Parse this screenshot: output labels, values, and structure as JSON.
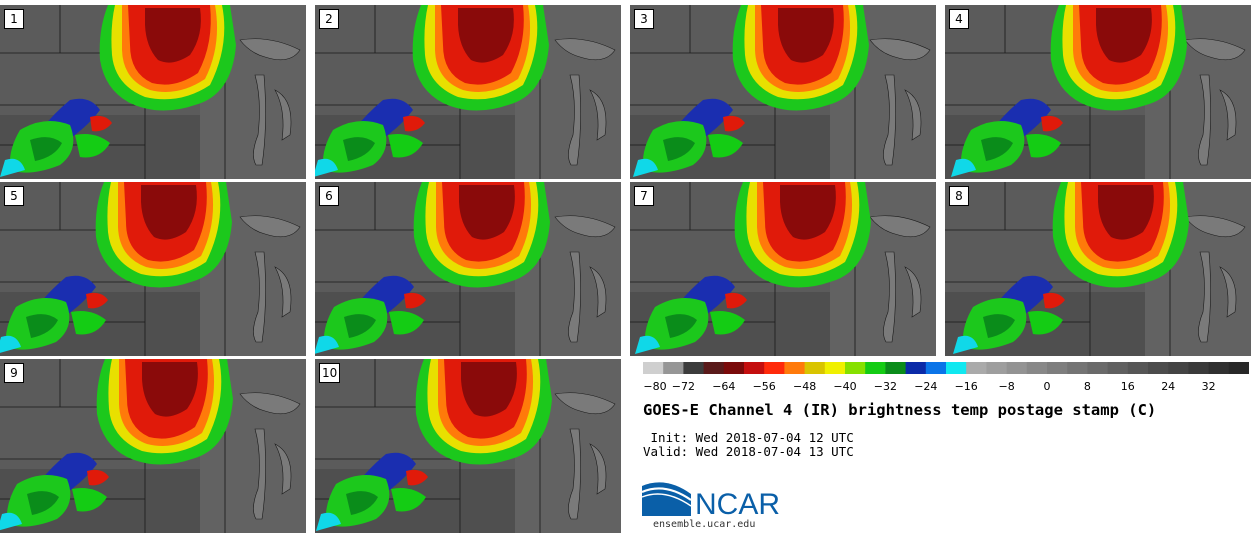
{
  "panels": [
    {
      "label": "1"
    },
    {
      "label": "2"
    },
    {
      "label": "3"
    },
    {
      "label": "4"
    },
    {
      "label": "5"
    },
    {
      "label": "6"
    },
    {
      "label": "7"
    },
    {
      "label": "8"
    },
    {
      "label": "9"
    },
    {
      "label": "10"
    }
  ],
  "colorbar": {
    "colors": [
      "#cfcfcf",
      "#969696",
      "#3c3c3c",
      "#5a1a1a",
      "#7a0a0a",
      "#c40e0e",
      "#ff2a0a",
      "#ff7a0a",
      "#d9c400",
      "#f0f000",
      "#86e000",
      "#14cc14",
      "#0a8c1a",
      "#0a2aa8",
      "#0a74e8",
      "#10e8f0",
      "#aaaaaa",
      "#9e9e9e",
      "#939393",
      "#888888",
      "#7e7e7e",
      "#747474",
      "#6a6a6a",
      "#606060",
      "#565656",
      "#4c4c4c",
      "#444444",
      "#3a3a3a",
      "#303030",
      "#282828"
    ],
    "tick_labels": [
      "−80",
      "−72",
      "−64",
      "−56",
      "−48",
      "−40",
      "−32",
      "−24",
      "−16",
      "−8",
      "0",
      "8",
      "16",
      "24",
      "32"
    ],
    "min": -80,
    "max": 40
  },
  "title": "GOES-E Channel 4 (IR) brightness temp postage stamp (C)",
  "init_line": " Init: Wed 2018-07-04 12 UTC",
  "valid_line": "Valid: Wed 2018-07-04 13 UTC",
  "logo_text": "NCAR",
  "website": "ensemble.ucar.edu"
}
